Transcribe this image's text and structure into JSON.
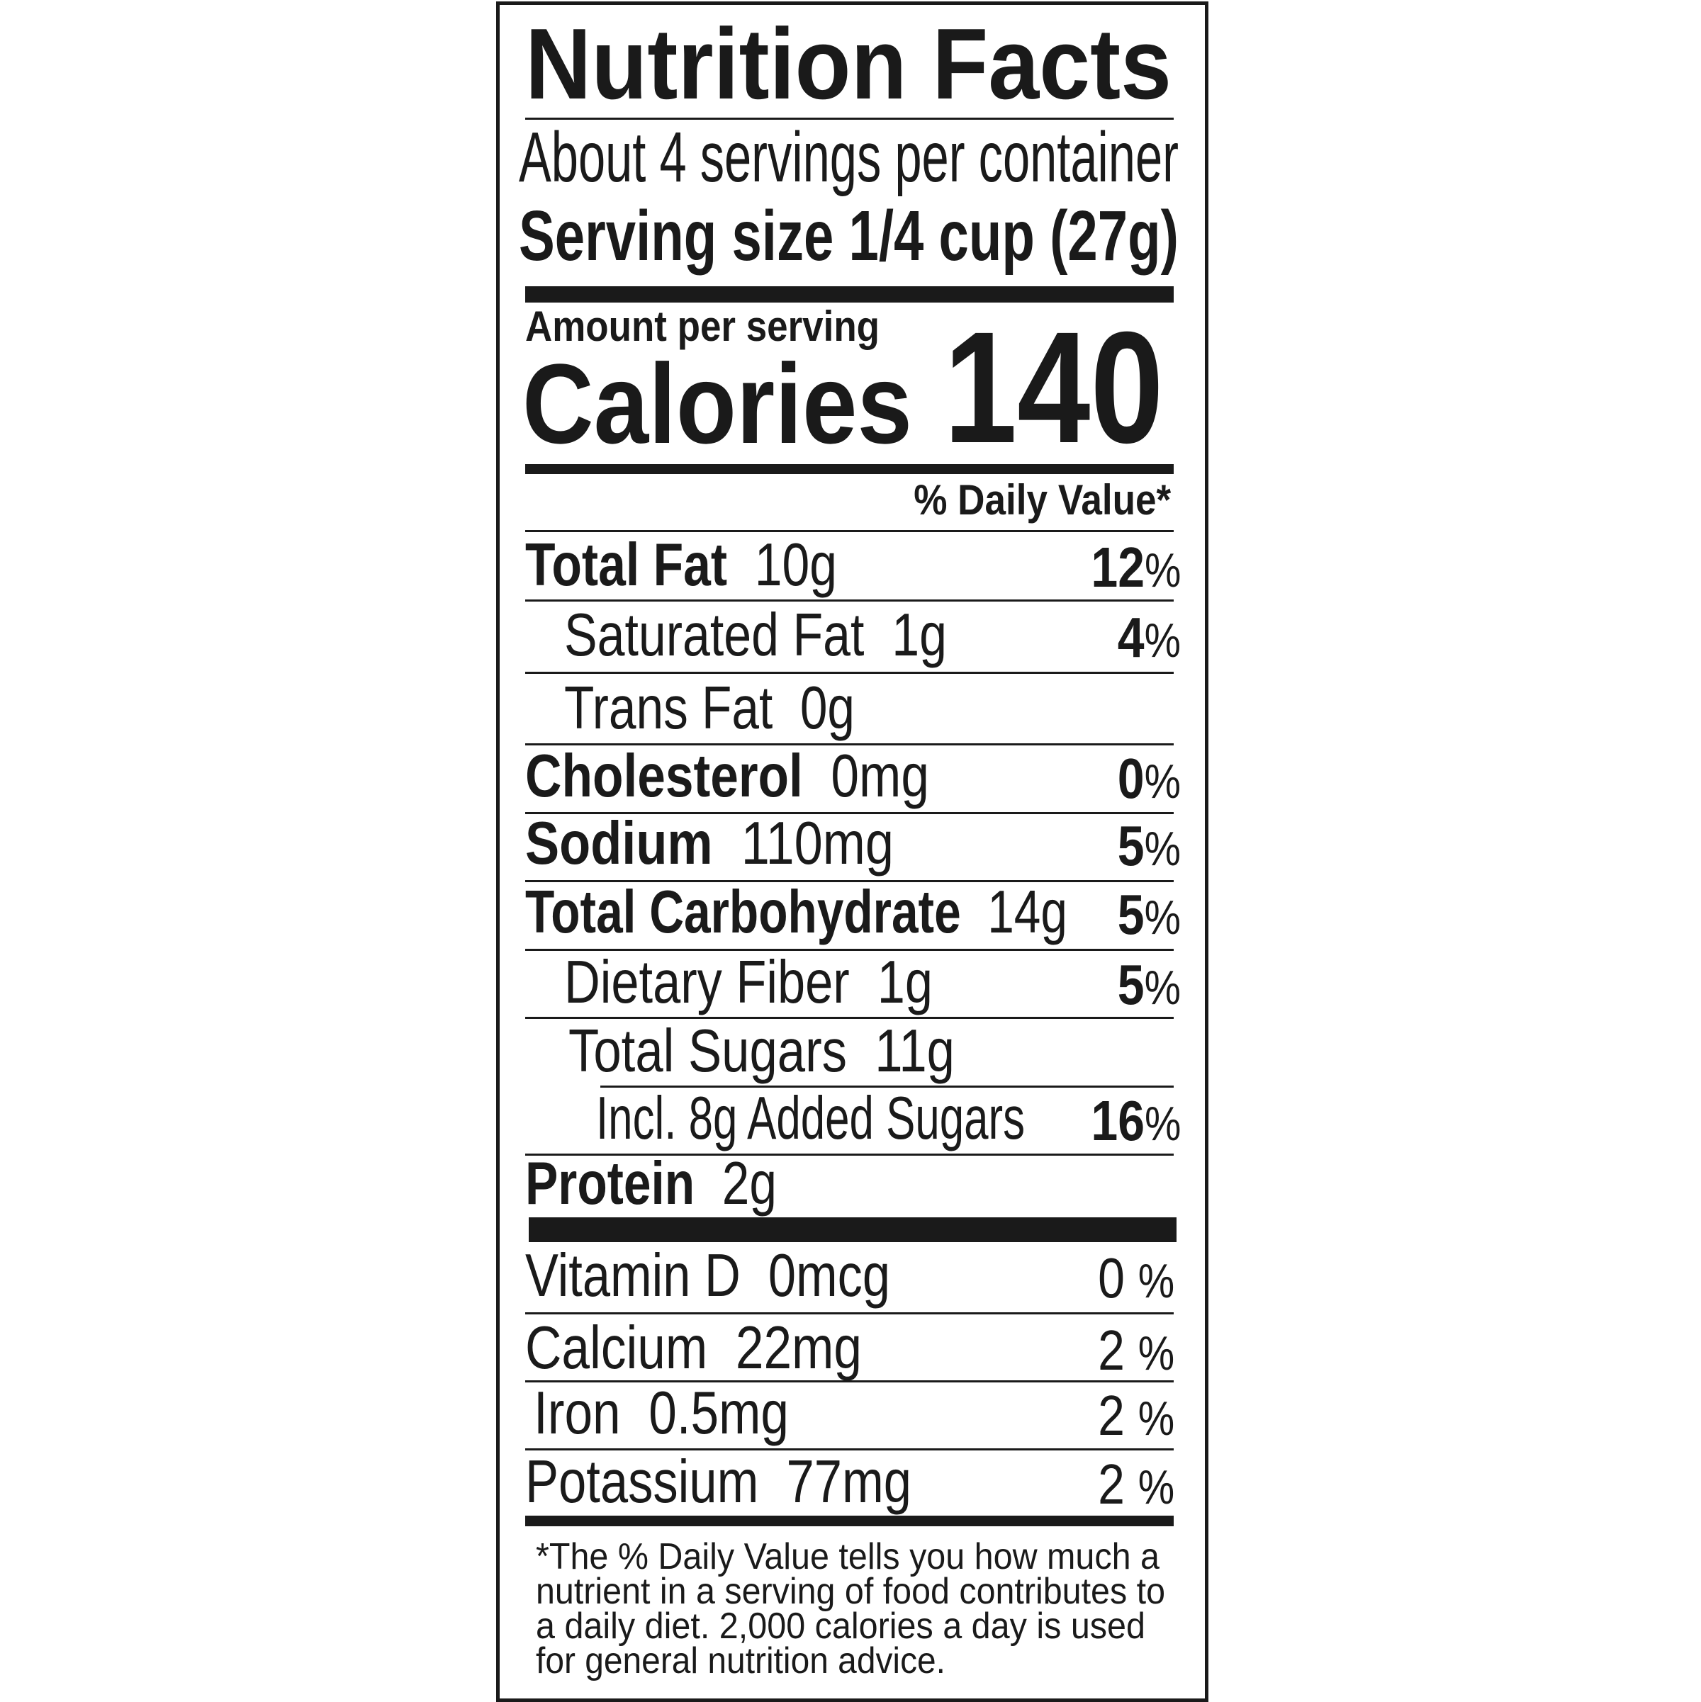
{
  "label": {
    "title": "Nutrition Facts",
    "servings_per_container": "About 4 servings per container",
    "serving_size_label": "Serving size",
    "serving_size_value": "1/4 cup (27g)",
    "amount_per_serving": "Amount per serving",
    "calories_label": "Calories",
    "calories_value": "140",
    "daily_value_header": "% Daily Value*",
    "nutrients": [
      {
        "name": "Total Fat",
        "amount": "10g",
        "dv": "12",
        "bold": true
      },
      {
        "name": "Saturated Fat",
        "amount": "1g",
        "dv": "4",
        "bold": false
      },
      {
        "name": "Trans Fat",
        "amount": "0g",
        "dv": "",
        "bold": false
      },
      {
        "name": "Cholesterol",
        "amount": "0mg",
        "dv": "0",
        "bold": true
      },
      {
        "name": "Sodium",
        "amount": "110mg",
        "dv": "5",
        "bold": true
      },
      {
        "name": "Total Carbohydrate",
        "amount": "14g",
        "dv": "5",
        "bold": true
      },
      {
        "name": "Dietary Fiber",
        "amount": "1g",
        "dv": "5",
        "bold": false
      },
      {
        "name": "Total Sugars",
        "amount": "11g",
        "dv": "",
        "bold": false
      },
      {
        "name": "Incl. 8g Added Sugars",
        "amount": "",
        "dv": "16",
        "bold": false
      },
      {
        "name": "Protein",
        "amount": "2g",
        "dv": "",
        "bold": true
      }
    ],
    "vitamins": [
      {
        "name": "Vitamin D",
        "amount": "0mcg",
        "dv": "0"
      },
      {
        "name": "Calcium",
        "amount": "22mg",
        "dv": "2"
      },
      {
        "name": "Iron",
        "amount": "0.5mg",
        "dv": "2"
      },
      {
        "name": "Potassium",
        "amount": "77mg",
        "dv": "2"
      }
    ],
    "percent_symbol": "%",
    "footnote_lines": [
      "*The % Daily Value tells you how much a",
      "nutrient in a serving of food contributes to",
      "a daily diet. 2,000 calories a day is used",
      "for general nutrition advice."
    ],
    "colors": {
      "ink": "#1a1a1a",
      "background": "#ffffff"
    }
  }
}
